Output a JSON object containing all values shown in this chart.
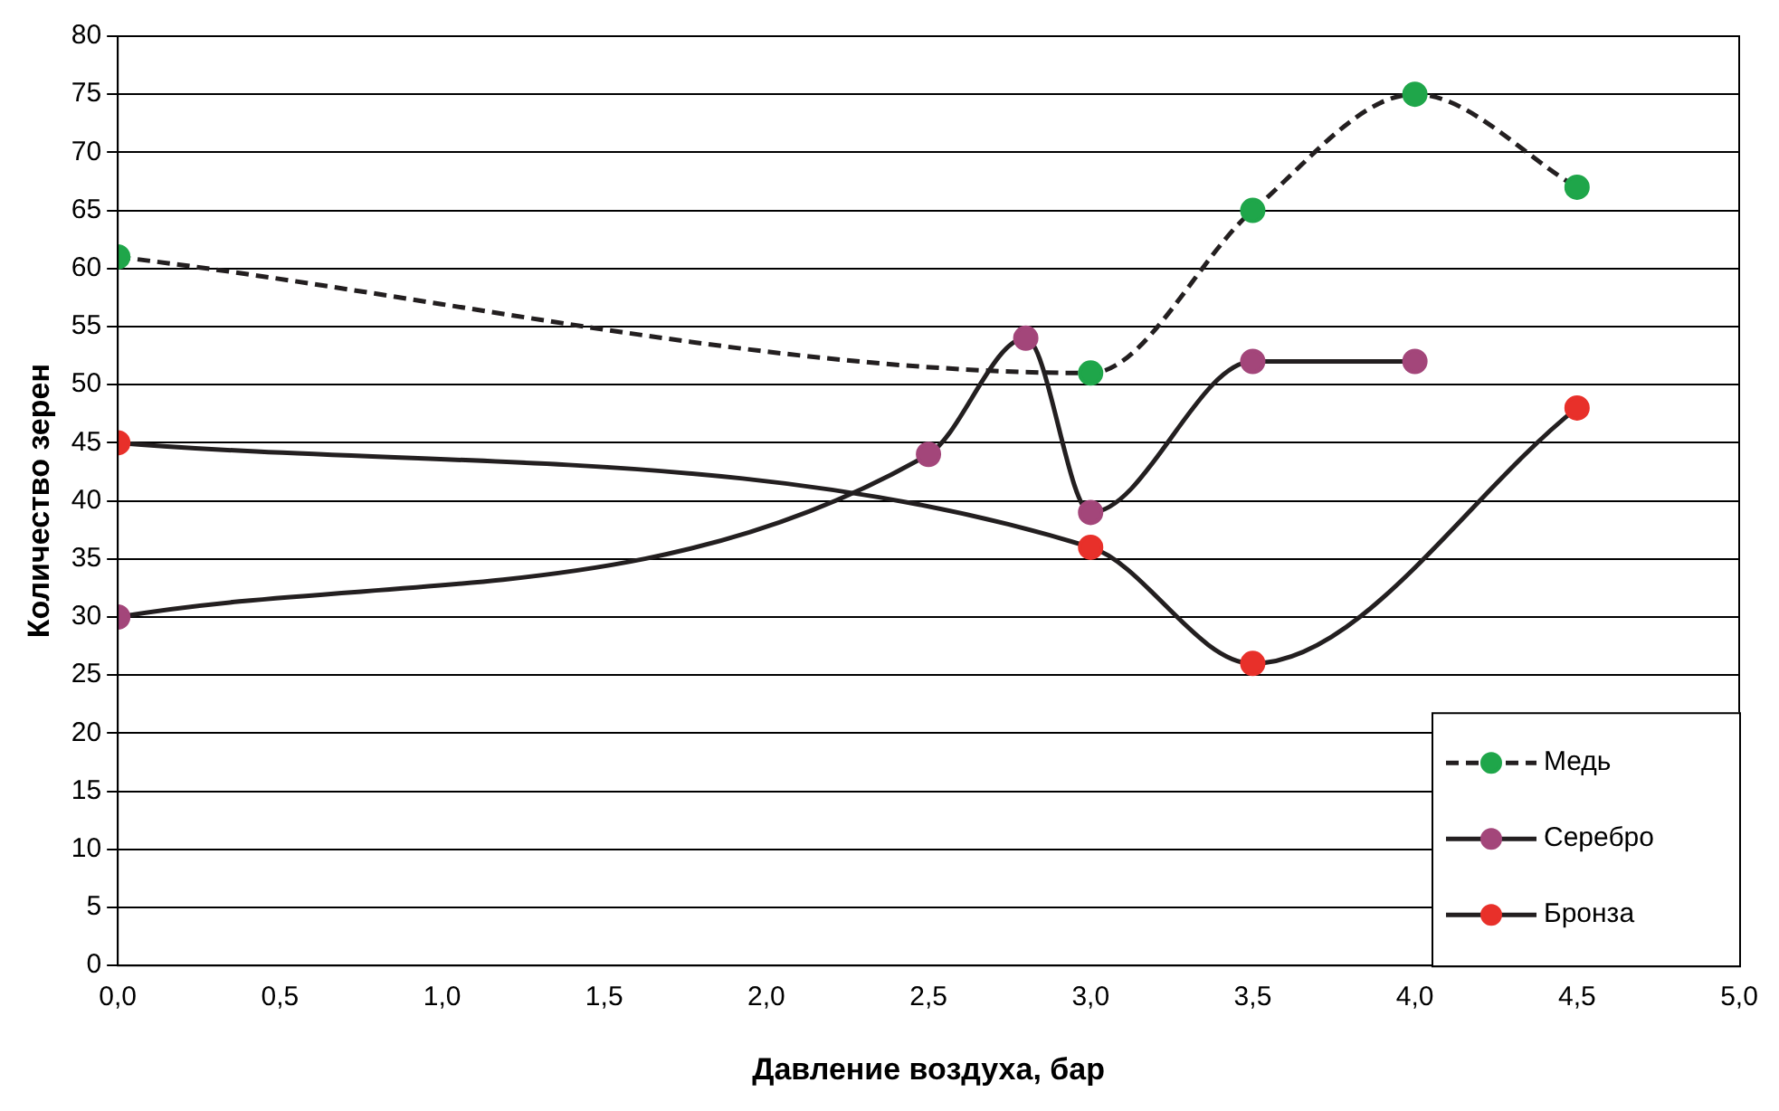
{
  "chart_data": {
    "type": "line",
    "xlabel": "Давление воздуха, бар",
    "ylabel": "Количество зерен",
    "xlim": [
      0,
      5
    ],
    "xticks": [
      {
        "value": 0,
        "label": "0,0"
      },
      {
        "value": 0.5,
        "label": "0,5"
      },
      {
        "value": 1,
        "label": "1,0"
      },
      {
        "value": 1.5,
        "label": "1,5"
      },
      {
        "value": 2,
        "label": "2,0"
      },
      {
        "value": 2.5,
        "label": "2,5"
      },
      {
        "value": 3,
        "label": "3,0"
      },
      {
        "value": 3.5,
        "label": "3,5"
      },
      {
        "value": 4,
        "label": "4,0"
      },
      {
        "value": 4.5,
        "label": "4,5"
      },
      {
        "value": 5,
        "label": "5,0"
      }
    ],
    "ylim": [
      0,
      80
    ],
    "yticks": [
      0,
      5,
      10,
      15,
      20,
      25,
      30,
      35,
      40,
      45,
      50,
      55,
      60,
      65,
      70,
      75,
      80
    ],
    "grid": "y",
    "legend": "bottom right",
    "marker": "circle",
    "series": [
      {
        "name": "Медь",
        "color": "#1fa64a",
        "line_style": "dashed",
        "x": [
          0,
          3,
          3.5,
          4,
          4.5
        ],
        "values": [
          61,
          51,
          65,
          75,
          67
        ]
      },
      {
        "name": "Серебро",
        "color": "#a3467a",
        "line_style": "solid",
        "x": [
          0,
          2.5,
          2.8,
          3,
          3.5,
          4
        ],
        "values": [
          30,
          44,
          54,
          39,
          52,
          52
        ]
      },
      {
        "name": "Бронза",
        "color": "#e8302a",
        "line_style": "solid",
        "x": [
          0,
          3,
          3.5,
          4.5
        ],
        "values": [
          45,
          36,
          26,
          48
        ]
      }
    ]
  }
}
